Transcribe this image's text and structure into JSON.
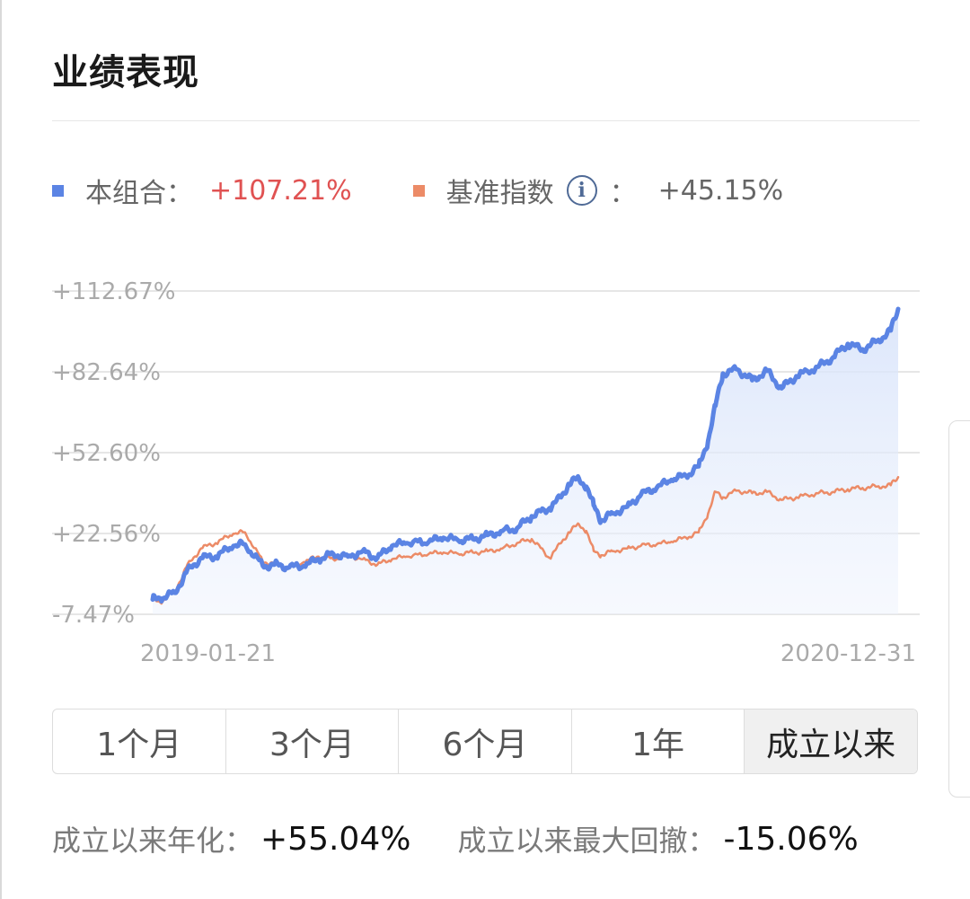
{
  "header": {
    "title": "业绩表现"
  },
  "legend": {
    "portfolio": {
      "label": "本组合：",
      "value": "+107.21%",
      "color": "#5b84e4"
    },
    "benchmark": {
      "label": "基准指数",
      "info_icon": "info-icon",
      "separator": "：",
      "value": "+45.15%",
      "color": "#ec8b67"
    }
  },
  "chart_data": {
    "type": "line",
    "y_tick_labels": [
      "+112.67%",
      "+82.64%",
      "+52.60%",
      "+22.56%",
      "-7.47%"
    ],
    "y_ticks": [
      112.67,
      82.64,
      52.6,
      22.56,
      -7.47
    ],
    "ylim": [
      -7.47,
      112.67
    ],
    "x_tick_labels": [
      "2019-01-21",
      "2020-12-31"
    ],
    "x_range": [
      "2019-01-21",
      "2020-12-31"
    ],
    "grid": true,
    "series": [
      {
        "name": "本组合",
        "color": "#5b84e4",
        "area_fill": true,
        "points": [
          [
            "2019-01-21",
            -2.0
          ],
          [
            "2019-01-28",
            -1.5
          ],
          [
            "2019-02-11",
            0.5
          ],
          [
            "2019-02-22",
            8.0
          ],
          [
            "2019-03-08",
            13.5
          ],
          [
            "2019-03-22",
            14.0
          ],
          [
            "2019-04-08",
            18.0
          ],
          [
            "2019-04-19",
            18.5
          ],
          [
            "2019-05-06",
            10.5
          ],
          [
            "2019-05-17",
            11.0
          ],
          [
            "2019-05-31",
            10.0
          ],
          [
            "2019-06-14",
            10.5
          ],
          [
            "2019-06-28",
            13.0
          ],
          [
            "2019-07-12",
            15.0
          ],
          [
            "2019-07-26",
            14.0
          ],
          [
            "2019-08-09",
            16.0
          ],
          [
            "2019-08-23",
            13.5
          ],
          [
            "2019-09-06",
            18.0
          ],
          [
            "2019-09-20",
            19.0
          ],
          [
            "2019-10-11",
            19.5
          ],
          [
            "2019-10-25",
            21.0
          ],
          [
            "2019-11-08",
            20.0
          ],
          [
            "2019-11-22",
            20.5
          ],
          [
            "2019-12-06",
            22.0
          ],
          [
            "2019-12-20",
            23.5
          ],
          [
            "2020-01-03",
            24.5
          ],
          [
            "2020-01-17",
            29.0
          ],
          [
            "2020-02-03",
            32.0
          ],
          [
            "2020-02-14",
            36.0
          ],
          [
            "2020-02-21",
            41.0
          ],
          [
            "2020-03-02",
            43.0
          ],
          [
            "2020-03-09",
            40.0
          ],
          [
            "2020-03-16",
            33.0
          ],
          [
            "2020-03-23",
            27.5
          ],
          [
            "2020-04-03",
            30.0
          ],
          [
            "2020-04-17",
            32.5
          ],
          [
            "2020-04-30",
            37.0
          ],
          [
            "2020-05-15",
            39.5
          ],
          [
            "2020-05-29",
            42.5
          ],
          [
            "2020-06-12",
            44.0
          ],
          [
            "2020-06-24",
            47.5
          ],
          [
            "2020-07-03",
            57.0
          ],
          [
            "2020-07-10",
            70.0
          ],
          [
            "2020-07-17",
            82.0
          ],
          [
            "2020-07-31",
            83.5
          ],
          [
            "2020-08-14",
            79.5
          ],
          [
            "2020-08-28",
            83.0
          ],
          [
            "2020-09-11",
            76.5
          ],
          [
            "2020-09-25",
            81.0
          ],
          [
            "2020-10-16",
            84.5
          ],
          [
            "2020-10-30",
            88.0
          ],
          [
            "2020-11-13",
            93.0
          ],
          [
            "2020-11-27",
            91.0
          ],
          [
            "2020-12-11",
            94.0
          ],
          [
            "2020-12-24",
            98.0
          ],
          [
            "2020-12-31",
            106.0
          ]
        ]
      },
      {
        "name": "基准指数",
        "color": "#ec8b67",
        "area_fill": false,
        "points": [
          [
            "2019-01-21",
            -2.0
          ],
          [
            "2019-01-28",
            -3.0
          ],
          [
            "2019-02-11",
            1.0
          ],
          [
            "2019-02-22",
            10.0
          ],
          [
            "2019-03-08",
            17.0
          ],
          [
            "2019-03-22",
            19.0
          ],
          [
            "2019-04-08",
            22.5
          ],
          [
            "2019-04-19",
            23.0
          ],
          [
            "2019-05-06",
            12.0
          ],
          [
            "2019-05-17",
            11.5
          ],
          [
            "2019-05-31",
            10.0
          ],
          [
            "2019-06-14",
            12.0
          ],
          [
            "2019-06-28",
            14.0
          ],
          [
            "2019-07-12",
            13.0
          ],
          [
            "2019-07-26",
            14.5
          ],
          [
            "2019-08-09",
            13.0
          ],
          [
            "2019-08-23",
            11.0
          ],
          [
            "2019-09-06",
            13.0
          ],
          [
            "2019-09-20",
            14.0
          ],
          [
            "2019-10-11",
            15.0
          ],
          [
            "2019-10-25",
            15.5
          ],
          [
            "2019-11-08",
            15.0
          ],
          [
            "2019-11-22",
            15.5
          ],
          [
            "2019-12-06",
            16.0
          ],
          [
            "2019-12-20",
            17.0
          ],
          [
            "2020-01-03",
            19.0
          ],
          [
            "2020-01-17",
            20.5
          ],
          [
            "2020-02-03",
            13.5
          ],
          [
            "2020-02-14",
            19.0
          ],
          [
            "2020-02-21",
            23.0
          ],
          [
            "2020-03-02",
            26.0
          ],
          [
            "2020-03-09",
            23.5
          ],
          [
            "2020-03-16",
            16.0
          ],
          [
            "2020-03-23",
            14.5
          ],
          [
            "2020-04-03",
            16.0
          ],
          [
            "2020-04-17",
            17.0
          ],
          [
            "2020-04-30",
            18.0
          ],
          [
            "2020-05-15",
            18.5
          ],
          [
            "2020-05-29",
            19.5
          ],
          [
            "2020-06-12",
            21.0
          ],
          [
            "2020-06-24",
            23.0
          ],
          [
            "2020-07-03",
            30.0
          ],
          [
            "2020-07-10",
            38.0
          ],
          [
            "2020-07-17",
            36.0
          ],
          [
            "2020-07-31",
            38.5
          ],
          [
            "2020-08-14",
            37.5
          ],
          [
            "2020-08-28",
            38.0
          ],
          [
            "2020-09-11",
            35.0
          ],
          [
            "2020-09-25",
            36.0
          ],
          [
            "2020-10-16",
            37.5
          ],
          [
            "2020-10-30",
            38.0
          ],
          [
            "2020-11-13",
            39.0
          ],
          [
            "2020-11-27",
            39.5
          ],
          [
            "2020-12-11",
            40.0
          ],
          [
            "2020-12-24",
            40.5
          ],
          [
            "2020-12-31",
            43.5
          ]
        ]
      }
    ]
  },
  "tabs": [
    {
      "label": "1个月",
      "active": false
    },
    {
      "label": "3个月",
      "active": false
    },
    {
      "label": "6个月",
      "active": false
    },
    {
      "label": "1年",
      "active": false
    },
    {
      "label": "成立以来",
      "active": true
    }
  ],
  "stats": {
    "annualized_label": "成立以来年化：",
    "annualized_value": "+55.04%",
    "drawdown_label": "成立以来最大回撤：",
    "drawdown_value": "-15.06%"
  }
}
